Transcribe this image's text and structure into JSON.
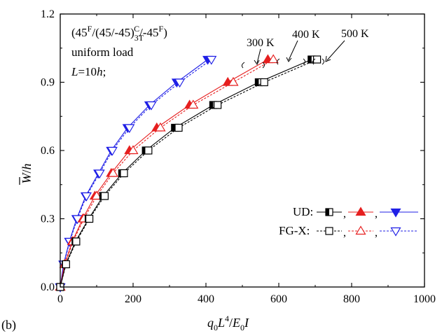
{
  "figure": {
    "panel_label": "(b)",
    "annotation": {
      "lay_open": "(45",
      "lay_F1": "F",
      "lay_mid": "/(45/-45)",
      "lay_sub": "3T",
      "lay_sup": "C",
      "lay_end1": "/-45",
      "lay_F2": "F",
      "lay_close": ")",
      "line2": "uniform load",
      "line3_L": "L",
      "line3_rest": "=10",
      "line3_h": "h",
      "line3_semi": ";"
    },
    "temps": [
      "300 K",
      "400 K",
      "500 K"
    ],
    "legend": {
      "ud_label": "UD:",
      "fgx_label": "FG-X:",
      "sep": ","
    },
    "xaxis_parts": {
      "q": "q",
      "q_sub": "0",
      "L": "L",
      "L_sup": "4",
      "slash": "/",
      "E": "E",
      "E_sub": "0",
      "I": "I"
    },
    "yaxis_parts": {
      "W": "W",
      "slash": "/",
      "h": "h"
    },
    "colors": {
      "300 K": "#1f1fe6",
      "400 K": "#e61f1f",
      "500 K": "#000000"
    }
  },
  "chart_data": {
    "type": "line",
    "title": "",
    "xlabel": "q0L4/E0I",
    "ylabel": "W/h",
    "xlim": [
      0,
      1000
    ],
    "ylim": [
      0,
      1.2
    ],
    "xticks": [
      0,
      200,
      400,
      600,
      800,
      1000
    ],
    "yticks": [
      0.0,
      0.3,
      0.6,
      0.9,
      1.2
    ],
    "xtick_labels": [
      "0",
      "200",
      "400",
      "600",
      "800",
      "1000"
    ],
    "ytick_labels": [
      "0.0",
      "0.3",
      "0.6",
      "0.9",
      "1.2"
    ],
    "y": [
      0,
      0.1,
      0.2,
      0.3,
      0.4,
      0.5,
      0.6,
      0.7,
      0.8,
      0.9,
      1.0
    ],
    "series": [
      {
        "name": "UD 300 K",
        "temp": "300 K",
        "type": "UD",
        "marker": "tri-down-filled",
        "dash": false,
        "x": [
          0,
          9,
          25,
          45,
          70,
          105,
          140,
          185,
          245,
          320,
          405
        ]
      },
      {
        "name": "FG-X 300 K",
        "temp": "300 K",
        "type": "FG-X",
        "marker": "tri-down-open",
        "dash": true,
        "x": [
          0,
          10,
          26,
          47,
          72,
          108,
          143,
          190,
          250,
          328,
          415
        ]
      },
      {
        "name": "UD 400 K",
        "temp": "400 K",
        "type": "UD",
        "marker": "tri-up-filled",
        "dash": false,
        "x": [
          0,
          12,
          33,
          62,
          95,
          140,
          190,
          265,
          355,
          460,
          570
        ]
      },
      {
        "name": "FG-X 400 K",
        "temp": "400 K",
        "type": "FG-X",
        "marker": "tri-up-open",
        "dash": true,
        "x": [
          0,
          13,
          35,
          65,
          100,
          145,
          200,
          275,
          365,
          475,
          585
        ]
      },
      {
        "name": "UD 500 K",
        "temp": "500 K",
        "type": "UD",
        "marker": "square-filled",
        "dash": false,
        "x": [
          0,
          15,
          42,
          78,
          118,
          170,
          235,
          315,
          420,
          545,
          690
        ]
      },
      {
        "name": "FG-X 500 K",
        "temp": "500 K",
        "type": "FG-X",
        "marker": "square-open",
        "dash": true,
        "x": [
          0,
          16,
          44,
          80,
          122,
          175,
          242,
          325,
          432,
          560,
          705
        ]
      }
    ],
    "grid": false,
    "legend_position": "bottom-right"
  }
}
